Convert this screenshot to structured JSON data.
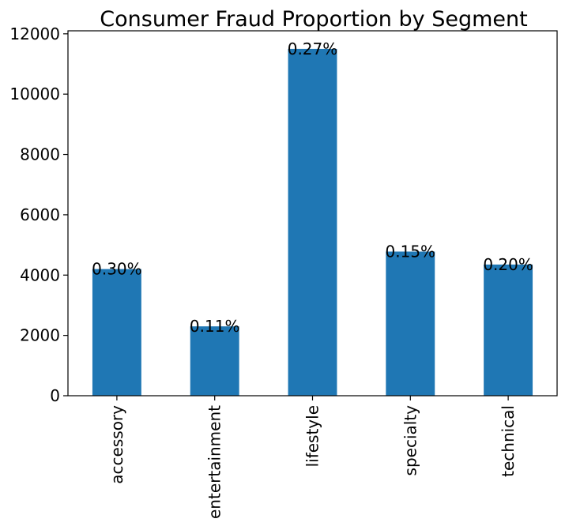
{
  "chart_data": {
    "type": "bar",
    "title": "Consumer Fraud Proportion by Segment",
    "xlabel": "",
    "ylabel": "",
    "categories": [
      "accessory",
      "entertainment",
      "lifestyle",
      "specialty",
      "technical"
    ],
    "values": [
      4200,
      2300,
      11500,
      4780,
      4350
    ],
    "data_labels": [
      "0.30%",
      "0.11%",
      "0.27%",
      "0.15%",
      "0.20%"
    ],
    "ylim": [
      0,
      12100
    ],
    "yticks": [
      0,
      2000,
      4000,
      6000,
      8000,
      10000,
      12000
    ],
    "ytick_labels": [
      "0",
      "2000",
      "4000",
      "6000",
      "8000",
      "10000",
      "12000"
    ],
    "bar_color": "#1f77b4",
    "grid": false,
    "legend": "none"
  }
}
